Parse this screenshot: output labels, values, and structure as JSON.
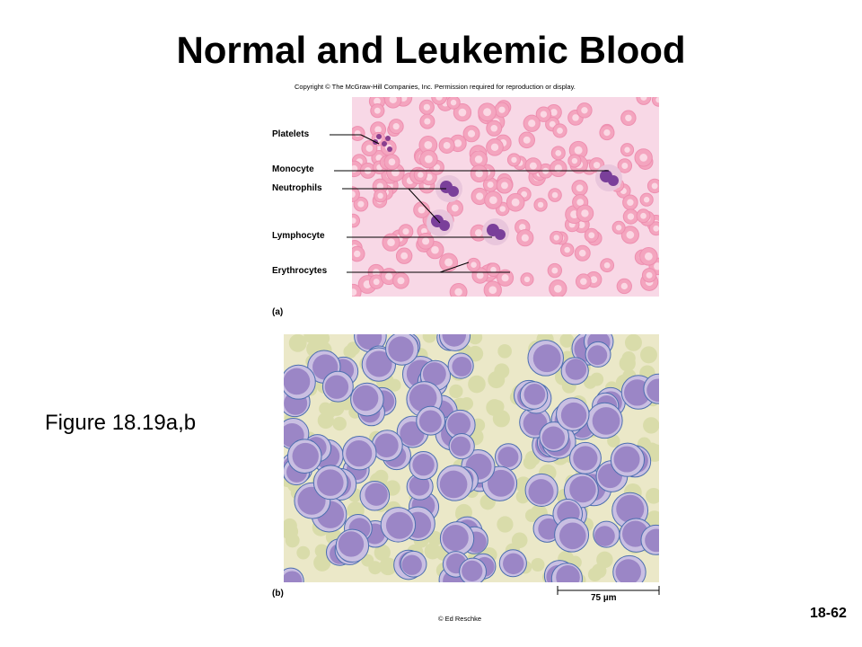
{
  "slide": {
    "title": "Normal and Leukemic Blood",
    "copyright": "Copyright © The McGraw-Hill Companies, Inc. Permission required for reproduction or display.",
    "figure_label": "Figure 18.19a,b",
    "slide_number": "18-62",
    "credit": "© Ed Reschke"
  },
  "panel_a": {
    "tag": "(a)",
    "labels": [
      "Platelets",
      "Monocyte",
      "Neutrophils",
      "Lymphocyte",
      "Erythrocytes"
    ]
  },
  "panel_b": {
    "tag": "(b)",
    "scale_bar": "75 µm"
  },
  "colors": {
    "erythrocyte": "#f4a5bf",
    "erythrocyte_center": "#fbd8e4",
    "leukocyte_nucleus": "#7a3f9a",
    "leukemic_cell": "#9b86c6",
    "leukemic_background": "#ebe8c8"
  }
}
